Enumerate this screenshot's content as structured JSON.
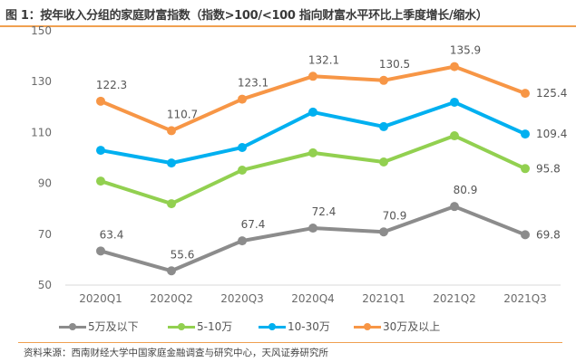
{
  "title": "图 1：按年收入分组的家庭财富指数（指数>100/<100 指向财富水平环比上季度增长/缩水）",
  "source": "资料来源：西南财经大学中国家庭金融调查与研究中心，天风证券研究所",
  "chart_data": {
    "type": "line",
    "title": "图 1：按年收入分组的家庭财富指数（指数>100/<100 指向财富水平环比上季度增长/缩水）",
    "xlabel": "",
    "ylabel": "",
    "categories": [
      "2020Q1",
      "2020Q2",
      "2020Q3",
      "2020Q4",
      "2021Q1",
      "2021Q2",
      "2021Q3"
    ],
    "ylim": [
      50,
      150
    ],
    "yticks": [
      50,
      70,
      90,
      110,
      130,
      150
    ],
    "grid": false,
    "legend_position": "bottom",
    "series": [
      {
        "name": "5万及以下",
        "color": "#8c8c8c",
        "values": [
          63.4,
          55.6,
          67.4,
          72.4,
          70.9,
          80.9,
          69.8
        ],
        "labels": [
          "63.4",
          "55.6",
          "67.4",
          "72.4",
          "70.9",
          "80.9",
          "69.8"
        ]
      },
      {
        "name": "5-10万",
        "color": "#92d050",
        "values": [
          90.9,
          82.0,
          95.2,
          102.0,
          98.4,
          108.7,
          95.8
        ],
        "labels": [
          null,
          null,
          null,
          null,
          null,
          null,
          "95.8"
        ]
      },
      {
        "name": "10-30万",
        "color": "#00b0f0",
        "values": [
          103.0,
          98.0,
          104.1,
          118.0,
          112.3,
          121.9,
          109.4
        ],
        "labels": [
          null,
          null,
          null,
          null,
          null,
          null,
          "109.4"
        ]
      },
      {
        "name": "30万及以上",
        "color": "#f79646",
        "values": [
          122.3,
          110.7,
          123.1,
          132.1,
          130.5,
          135.9,
          125.4
        ],
        "labels": [
          "122.3",
          "110.7",
          "123.1",
          "132.1",
          "130.5",
          "135.9",
          "125.4"
        ]
      }
    ]
  }
}
